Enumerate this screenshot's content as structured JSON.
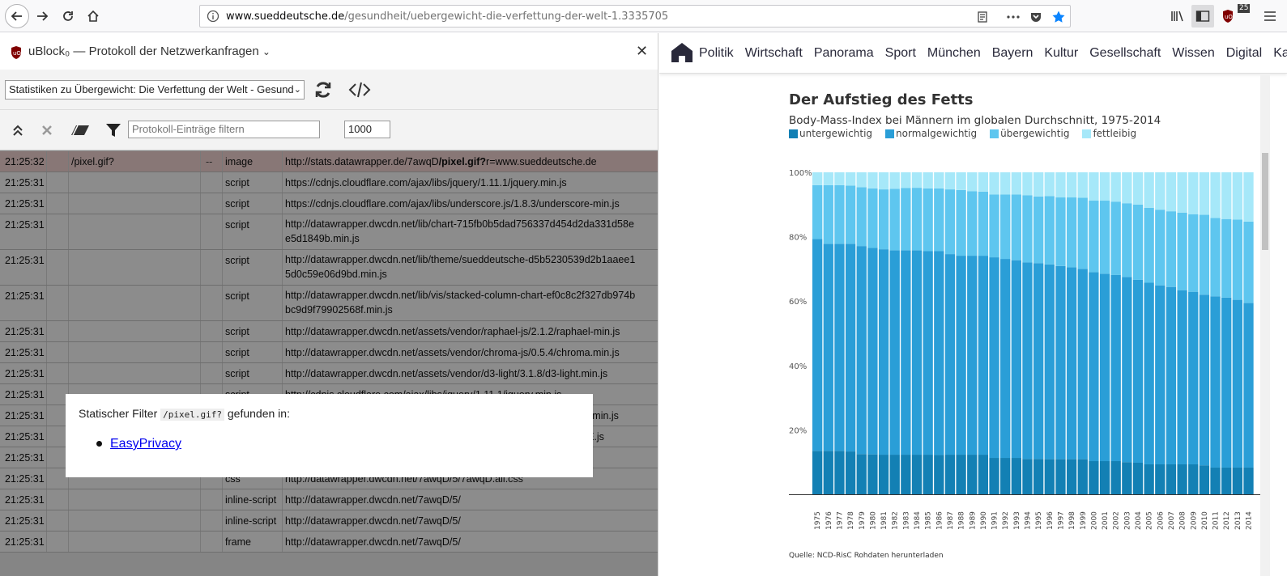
{
  "browser": {
    "url_host": "www.sueddeutsche.de",
    "url_path": "/gesundheit/uebergewicht-die-verfettung-der-welt-1.3335705",
    "ublock_badge": "25"
  },
  "sidebar": {
    "title": "uBlock₀ — Protokoll der Netzwerkanfragen",
    "tab_select": "Statistiken zu Übergewicht: Die Verfettung der Welt - Gesundl",
    "filter_placeholder": "Protokoll-Einträge filtern",
    "max_entries": "1000",
    "rows": [
      {
        "time": "21:25:32",
        "filter": "/pixel.gif?",
        "mark": "--",
        "type": "image",
        "url_pre": "http://stats.datawrapper.de/7awqD",
        "url_hl": "/pixel.gif?",
        "url_post": "r=www.sueddeutsche.de",
        "blocked": true
      },
      {
        "time": "21:25:31",
        "filter": "",
        "mark": "",
        "type": "script",
        "url_pre": "https://cdnjs.cloudflare.com/ajax/libs/jquery/1.11.1/jquery.min.js",
        "url_hl": "",
        "url_post": ""
      },
      {
        "time": "21:25:31",
        "filter": "",
        "mark": "",
        "type": "script",
        "url_pre": "https://cdnjs.cloudflare.com/ajax/libs/underscore.js/1.8.3/underscore-min.js",
        "url_hl": "",
        "url_post": ""
      },
      {
        "time": "21:25:31",
        "filter": "",
        "mark": "",
        "type": "script",
        "url_pre": "http://datawrapper.dwcdn.net/lib/chart-715fb0b5dad756337d454d2da331d58e",
        "url_line2": "e5d1849b.min.js",
        "url_hl": "",
        "url_post": ""
      },
      {
        "time": "21:25:31",
        "filter": "",
        "mark": "",
        "type": "script",
        "url_pre": "http://datawrapper.dwcdn.net/lib/theme/sueddeutsche-d5b5230539d2b1aaee1",
        "url_line2": "5d0c59e06d9bd.min.js",
        "url_hl": "",
        "url_post": ""
      },
      {
        "time": "21:25:31",
        "filter": "",
        "mark": "",
        "type": "script",
        "url_pre": "http://datawrapper.dwcdn.net/lib/vis/stacked-column-chart-ef0c8c2f327db974b",
        "url_line2": "bc9d9f79902568f.min.js",
        "url_hl": "",
        "url_post": ""
      },
      {
        "time": "21:25:31",
        "filter": "",
        "mark": "",
        "type": "script",
        "url_pre": "http://datawrapper.dwcdn.net/assets/vendor/raphael-js/2.1.2/raphael-min.js",
        "url_hl": "",
        "url_post": ""
      },
      {
        "time": "21:25:31",
        "filter": "",
        "mark": "",
        "type": "script",
        "url_pre": "http://datawrapper.dwcdn.net/assets/vendor/chroma-js/0.5.4/chroma.min.js",
        "url_hl": "",
        "url_post": ""
      },
      {
        "time": "21:25:31",
        "filter": "",
        "mark": "",
        "type": "script",
        "url_pre": "http://datawrapper.dwcdn.net/assets/vendor/d3-light/3.1.8/d3-light.min.js",
        "url_hl": "",
        "url_post": ""
      },
      {
        "time": "21:25:31",
        "filter": "",
        "mark": "",
        "type": "script",
        "url_pre": "http://cdnjs.cloudflare.com/ajax/libs/jquery/1.11.1/jquery.min.js",
        "url_hl": "",
        "url_post": ""
      },
      {
        "time": "21:25:31",
        "filter": "",
        "mark": "",
        "type": "",
        "url_pre": "re-min.js",
        "url_hl": "",
        "url_post": "",
        "url_offset": true
      },
      {
        "time": "21:25:31",
        "filter": "",
        "mark": "",
        "type": "",
        "url_pre": "DE.js",
        "url_hl": "",
        "url_post": "",
        "url_offset": true
      },
      {
        "time": "21:25:31",
        "filter": "",
        "mark": "",
        "type": "",
        "url_pre": "",
        "url_hl": "",
        "url_post": ""
      },
      {
        "time": "21:25:31",
        "filter": "",
        "mark": "",
        "type": "css",
        "url_pre": "http://datawrapper.dwcdn.net/7awqD/5/7awqD.all.css",
        "url_hl": "",
        "url_post": ""
      },
      {
        "time": "21:25:31",
        "filter": "",
        "mark": "",
        "type": "inline-script",
        "url_pre": "http://datawrapper.dwcdn.net/7awqD/5/",
        "url_hl": "",
        "url_post": ""
      },
      {
        "time": "21:25:31",
        "filter": "",
        "mark": "",
        "type": "inline-script",
        "url_pre": "http://datawrapper.dwcdn.net/7awqD/5/",
        "url_hl": "",
        "url_post": ""
      },
      {
        "time": "21:25:31",
        "filter": "",
        "mark": "",
        "type": "frame",
        "url_pre": "http://datawrapper.dwcdn.net/7awqD/5/",
        "url_hl": "",
        "url_post": ""
      }
    ],
    "popup": {
      "text_before": "Statischer Filter",
      "code": "/pixel.gif?",
      "text_after": "gefunden in:",
      "link": "EasyPrivacy"
    }
  },
  "site": {
    "nav": [
      "Politik",
      "Wirtschaft",
      "Panorama",
      "Sport",
      "München",
      "Bayern",
      "Kultur",
      "Gesellschaft",
      "Wissen",
      "Digital",
      "Ka"
    ],
    "source_label": "Quelle:",
    "source_text": "NCD-RisC Rohdaten herunterladen"
  },
  "colors": {
    "untergewichtig": "#1380b4",
    "normalgewichtig": "#2a9ed7",
    "uebergewichtig": "#5ec6ef",
    "fettleibig": "#a6e8f9",
    "blocked_row": "#f7d9d7"
  },
  "chart_data": {
    "type": "bar",
    "stacked": true,
    "title": "Der Aufstieg des Fetts",
    "subtitle": "Body-Mass-Index bei Männern im globalen Durchschnitt, 1975-2014",
    "ytick_labels": [
      "100%",
      "80%",
      "60%",
      "40%",
      "20%"
    ],
    "ylim": [
      0,
      100
    ],
    "categories": [
      "1975",
      "1976",
      "1977",
      "1978",
      "1979",
      "1980",
      "1981",
      "1982",
      "1983",
      "1984",
      "1985",
      "1986",
      "1987",
      "1988",
      "1989",
      "1990",
      "1991",
      "1992",
      "1993",
      "1994",
      "1995",
      "1996",
      "1997",
      "1998",
      "1999",
      "2000",
      "2001",
      "2002",
      "2003",
      "2004",
      "2005",
      "2006",
      "2007",
      "2008",
      "2009",
      "2010",
      "2011",
      "2012",
      "2013",
      "2014"
    ],
    "series": [
      {
        "name": "untergewichtig",
        "values": [
          13.5,
          13.5,
          13.5,
          13.3,
          12.5,
          12.4,
          12.3,
          12.3,
          12.3,
          12.3,
          12.3,
          12.2,
          12.3,
          12.3,
          12.3,
          12.3,
          11.3,
          11.3,
          11.3,
          11.0,
          11.0,
          10.9,
          10.9,
          10.9,
          10.9,
          10.3,
          10.3,
          10.3,
          10.0,
          9.8,
          9.3,
          9.3,
          9.3,
          9.3,
          9.3,
          9.0,
          8.3,
          8.3,
          8.3,
          8.3
        ]
      },
      {
        "name": "normalgewichtig",
        "values": [
          65.8,
          64.3,
          64.3,
          64.5,
          64.6,
          64.1,
          63.8,
          63.5,
          63.5,
          63.5,
          63.2,
          63.3,
          62.3,
          61.8,
          61.8,
          61.8,
          62.3,
          61.8,
          61.4,
          61.0,
          60.8,
          60.5,
          60.0,
          59.6,
          59.1,
          58.7,
          58.2,
          57.8,
          57.5,
          56.8,
          56.4,
          55.6,
          55.1,
          54.1,
          53.6,
          53.0,
          53.2,
          52.8,
          52.1,
          51.1
        ]
      },
      {
        "name": "übergewichtig",
        "values": [
          16.7,
          18.2,
          18.2,
          18.1,
          18.3,
          18.5,
          18.6,
          19.1,
          19.3,
          19.4,
          19.5,
          19.5,
          20.1,
          20.4,
          20.0,
          19.9,
          19.5,
          20.0,
          20.4,
          20.9,
          20.7,
          21.2,
          21.3,
          21.7,
          22.1,
          22.2,
          22.7,
          22.8,
          22.9,
          23.4,
          23.3,
          23.5,
          23.5,
          24.1,
          24.1,
          24.8,
          24.3,
          24.4,
          24.9,
          25.3
        ]
      },
      {
        "name": "fettleibig",
        "values": [
          4.0,
          4.0,
          4.0,
          4.1,
          4.6,
          5.0,
          5.3,
          5.1,
          4.9,
          4.8,
          5.0,
          5.0,
          5.3,
          5.5,
          5.9,
          6.0,
          6.9,
          6.9,
          6.9,
          7.1,
          7.5,
          7.4,
          7.8,
          7.8,
          7.9,
          8.8,
          8.8,
          9.1,
          9.6,
          10.0,
          11.0,
          11.6,
          12.1,
          12.5,
          13.0,
          13.2,
          14.2,
          14.5,
          14.7,
          15.3
        ]
      }
    ]
  }
}
